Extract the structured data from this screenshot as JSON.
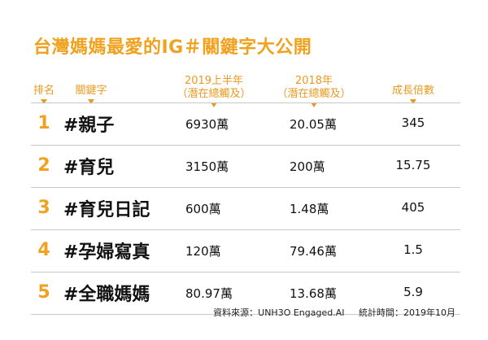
{
  "title": "台灣媽媽最愛的IG＃關鍵字大公開",
  "headers": {
    "rank": "排名",
    "keyword": "關鍵字",
    "h2019_line1": "2019上半年",
    "h2019_line2": "（潛在總觸及）",
    "h2018_line1": "2018年",
    "h2018_line2": "（潛在總觸及）",
    "growth": "成長倍數"
  },
  "rows": [
    {
      "rank": "1",
      "keyword": "#親子",
      "v2019": "6930萬",
      "v2018": "20.05萬",
      "growth": "345"
    },
    {
      "rank": "2",
      "keyword": "#育兒",
      "v2019": "3150萬",
      "v2018": "200萬",
      "growth": "15.75"
    },
    {
      "rank": "3",
      "keyword": "#育兒日記",
      "v2019": "600萬",
      "v2018": "1.48萬",
      "growth": "405"
    },
    {
      "rank": "4",
      "keyword": "#孕婦寫真",
      "v2019": "120萬",
      "v2018": "79.46萬",
      "growth": "1.5"
    },
    {
      "rank": "5",
      "keyword": "#全職媽媽",
      "v2019": "80.97萬",
      "v2018": "13.68萬",
      "growth": "5.9"
    }
  ],
  "footer": {
    "source": "資料來源：UNH3O Engaged.AI",
    "date": "統計時間：2019年10月"
  }
}
